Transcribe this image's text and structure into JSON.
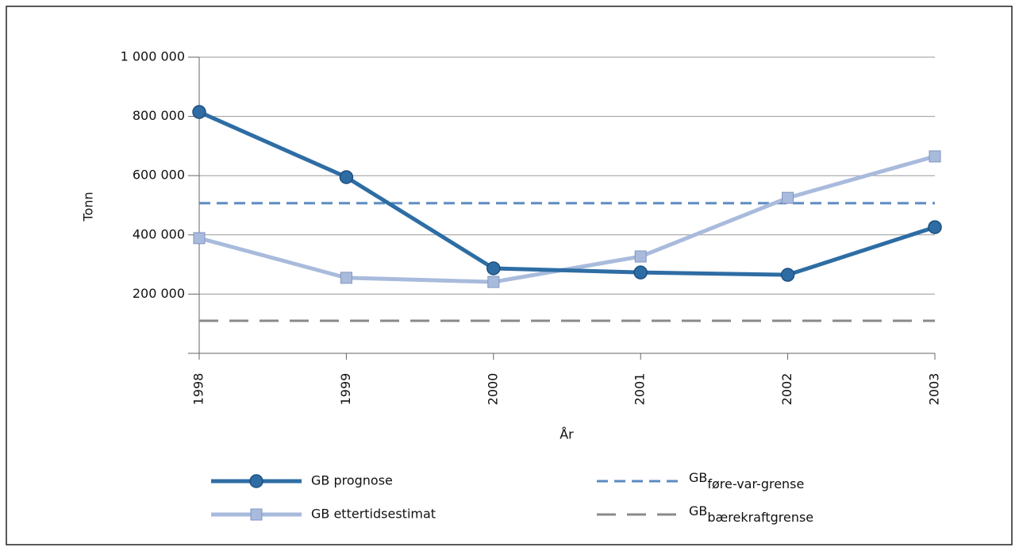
{
  "chart_data": {
    "type": "line",
    "ylabel": "Tonn",
    "xlabel": "År",
    "categories": [
      "1998",
      "1999",
      "2000",
      "2001",
      "2002",
      "2003"
    ],
    "series": [
      {
        "name": "GB prognose",
        "color": "#2e6da4",
        "marker": "circle",
        "values": [
          815000,
          595000,
          287000,
          273000,
          265000,
          426000
        ]
      },
      {
        "name": "GB ettertidsestimat",
        "color": "#a9bbdc",
        "marker": "square",
        "values": [
          389000,
          255000,
          241000,
          327000,
          525000,
          665000
        ]
      }
    ],
    "reference_lines": [
      {
        "name": "GB",
        "subscript": "føre-var-grense",
        "value": 507000,
        "color": "#5b8bc0",
        "dash": "short"
      },
      {
        "name": "GB",
        "subscript": "bærekraftgrense",
        "value": 110000,
        "color": "#8a8a8a",
        "dash": "long"
      }
    ],
    "ylim": [
      0,
      1000000
    ],
    "yticks": [
      {
        "value": 200000,
        "label": "200 000"
      },
      {
        "value": 400000,
        "label": "400 000"
      },
      {
        "value": 600000,
        "label": "600 000"
      },
      {
        "value": 800000,
        "label": "800 000"
      },
      {
        "value": 1000000,
        "label": "1 000 000"
      }
    ],
    "grid": true
  }
}
